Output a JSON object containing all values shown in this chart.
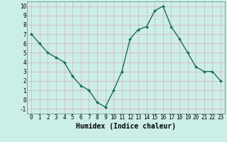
{
  "x": [
    0,
    1,
    2,
    3,
    4,
    5,
    6,
    7,
    8,
    9,
    10,
    11,
    12,
    13,
    14,
    15,
    16,
    17,
    18,
    19,
    20,
    21,
    22,
    23
  ],
  "y": [
    7,
    6,
    5,
    4.5,
    4,
    2.5,
    1.5,
    1,
    -0.3,
    -0.8,
    1,
    3,
    6.5,
    7.5,
    7.8,
    9.5,
    10,
    7.8,
    6.5,
    5,
    3.5,
    3,
    3,
    2
  ],
  "line_color": "#1a6b5a",
  "marker": "D",
  "marker_size": 2.0,
  "bg_color": "#cceee8",
  "grid_color": "#dda0a0",
  "xlabel": "Humidex (Indice chaleur)",
  "xlabel_fontsize": 7,
  "xlim": [
    -0.5,
    23.5
  ],
  "ylim": [
    -1.5,
    10.5
  ],
  "yticks": [
    -1,
    0,
    1,
    2,
    3,
    4,
    5,
    6,
    7,
    8,
    9,
    10
  ],
  "xticks": [
    0,
    1,
    2,
    3,
    4,
    5,
    6,
    7,
    8,
    9,
    10,
    11,
    12,
    13,
    14,
    15,
    16,
    17,
    18,
    19,
    20,
    21,
    22,
    23
  ],
  "tick_fontsize": 5.5,
  "linewidth": 1.0
}
